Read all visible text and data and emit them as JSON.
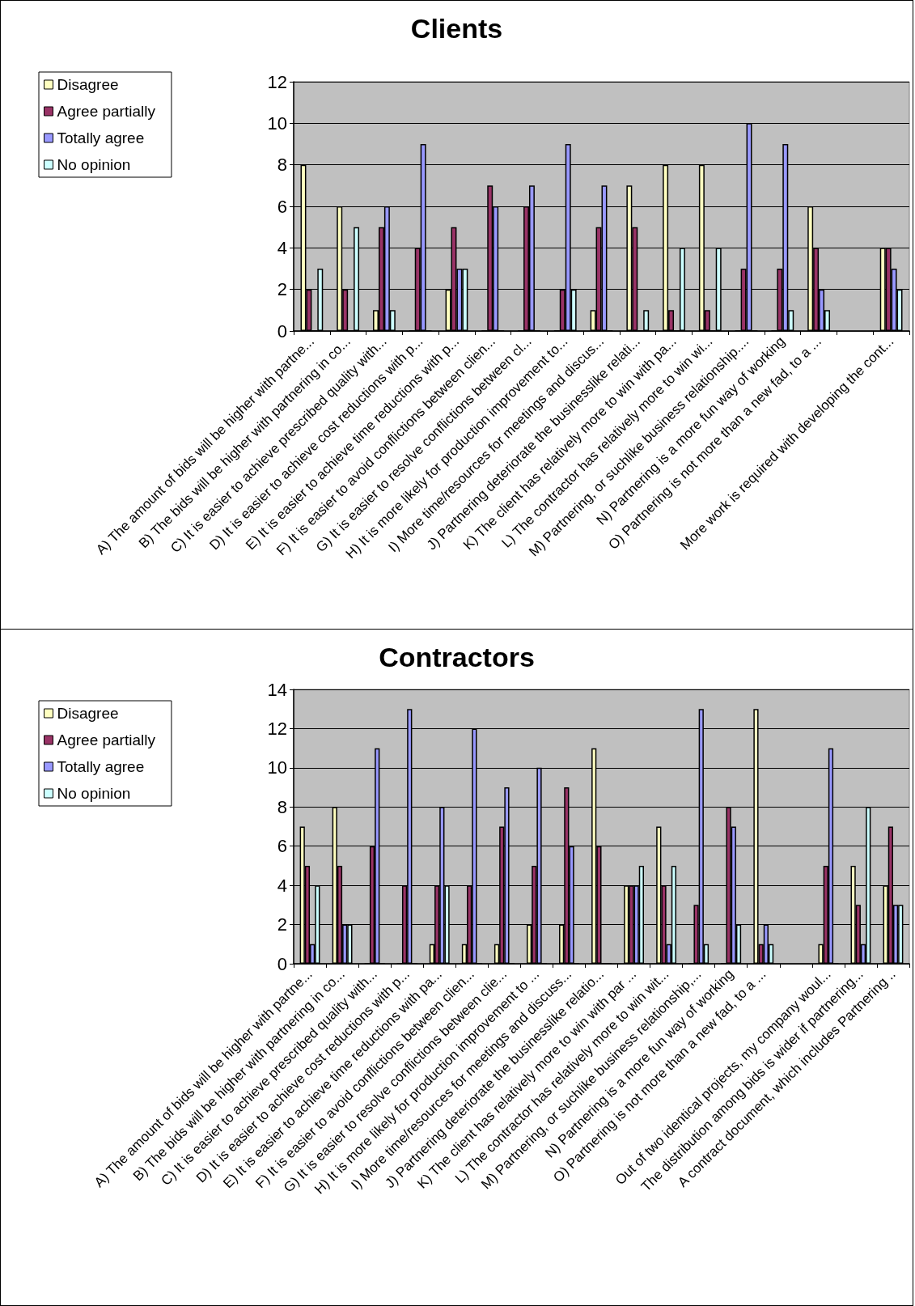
{
  "chart_data": [
    {
      "type": "bar",
      "title": "Clients",
      "categories": [
        "A) The amount of bids will be higher with partne...",
        "B) The bids will be higher with partnering in co...",
        "C) It is easier to achieve prescribed quality with...",
        "D) It is easier to achieve cost reductions with p...",
        "E) It is easier to achieve time reductions with p...",
        "F) It is easier to avoid conflictions between clien...",
        "G) It is easier to resolve conflictions between cl...",
        "H) It is more likely for production improvement to...",
        "I) More time/resources for meetings and discus...",
        "J) Partnering deteriorate the businesslike relati...",
        "K) The client has relatively more to win with pa...",
        "L) The contractor has relatively more to win wi...",
        "M) Partnering, or suchlike business relationship....",
        "N) Partnering is a more fun way of working",
        "O) Partnering is not more than a new fad, to a ...",
        null,
        "More work is required with developing the cont..."
      ],
      "series": [
        {
          "name": "Disagree",
          "color": "#ffffc0",
          "values": [
            8,
            6,
            1,
            0,
            2,
            0,
            0,
            0,
            1,
            7,
            8,
            8,
            0,
            0,
            6,
            null,
            4
          ]
        },
        {
          "name": "Agree partially",
          "color": "#993366",
          "values": [
            2,
            2,
            5,
            4,
            5,
            7,
            6,
            2,
            5,
            5,
            1,
            1,
            3,
            3,
            4,
            null,
            4
          ]
        },
        {
          "name": "Totally agree",
          "color": "#9999ff",
          "values": [
            0,
            0,
            6,
            9,
            3,
            6,
            7,
            9,
            7,
            0,
            0,
            0,
            10,
            9,
            2,
            null,
            3
          ]
        },
        {
          "name": "No opinion",
          "color": "#ccffff",
          "values": [
            3,
            5,
            1,
            0,
            3,
            0,
            0,
            2,
            0,
            1,
            4,
            4,
            0,
            1,
            1,
            null,
            2
          ]
        }
      ],
      "ylim": [
        0,
        12
      ],
      "yticks": [
        0,
        2,
        4,
        6,
        8,
        10,
        12
      ],
      "grid": "y",
      "legend": "top left"
    },
    {
      "type": "bar",
      "title": "Contractors",
      "categories": [
        "A) The amount of bids will be higher with partne...",
        "B) The bids will be higher with partnering in co...",
        "C) It is easier to achieve prescribed quality with...",
        "D) It is easier to achieve cost reductions with p...",
        "E) It is easier to achieve time reductions with pa...",
        "F) It is easier to avoid conflictions between clien...",
        "G) It is easier to resolve conflictions between clie...",
        "H) It is more likely for production improvement to ...",
        "I) More time/resources for meetings and discuss...",
        "J) Partnering deteriorate the businesslike relatio...",
        "K) The client has relatively more to win with par ...",
        "L) The contractor has relatively more to win wit...",
        "M) Partnering, or suchlike business relationship,...",
        "N) Partnering is a more fun way of working",
        "O) Partnering is not more than a new fad, to a ...",
        null,
        "Out of two identical projects, my company woul...",
        "The distribution among bids is wider if partnering...",
        "A contract document, which includes Partnering .."
      ],
      "series": [
        {
          "name": "Disagree",
          "color": "#ffffc0",
          "values": [
            7,
            8,
            0,
            0,
            1,
            1,
            1,
            2,
            2,
            11,
            4,
            7,
            0,
            0,
            13,
            null,
            1,
            5,
            4
          ]
        },
        {
          "name": "Agree partially",
          "color": "#993366",
          "values": [
            5,
            5,
            6,
            4,
            4,
            4,
            7,
            5,
            9,
            6,
            4,
            4,
            3,
            8,
            1,
            null,
            5,
            3,
            7
          ]
        },
        {
          "name": "Totally agree",
          "color": "#9999ff",
          "values": [
            1,
            2,
            11,
            13,
            8,
            12,
            9,
            10,
            6,
            0,
            4,
            1,
            13,
            7,
            2,
            null,
            11,
            1,
            3
          ]
        },
        {
          "name": "No opinion",
          "color": "#ccffff",
          "values": [
            4,
            2,
            0,
            0,
            4,
            0,
            0,
            0,
            0,
            0,
            5,
            5,
            1,
            2,
            1,
            null,
            0,
            8,
            3
          ]
        }
      ],
      "ylim": [
        0,
        14
      ],
      "yticks": [
        0,
        2,
        4,
        6,
        8,
        10,
        12,
        14
      ],
      "grid": "y",
      "legend": "top left"
    }
  ]
}
